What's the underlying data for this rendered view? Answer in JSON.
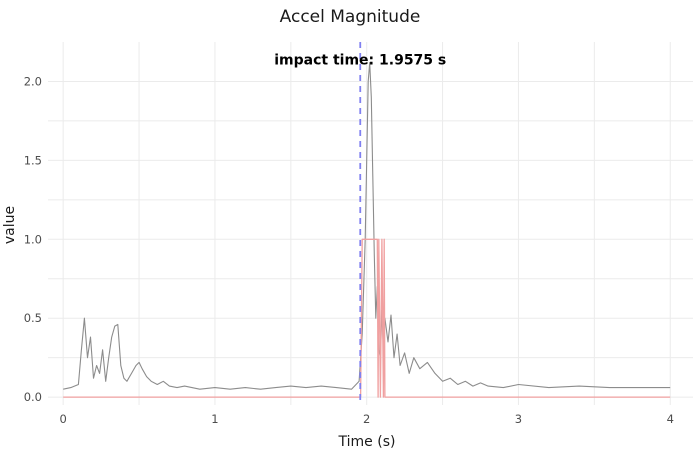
{
  "chart_data": {
    "type": "line",
    "title": "Accel Magnitude",
    "xlabel": "Time (s)",
    "ylabel": "value",
    "xlim": [
      -0.1,
      4.15
    ],
    "ylim": [
      -0.05,
      2.25
    ],
    "x_ticks": [
      0,
      1,
      2,
      3,
      4
    ],
    "x_tick_labels": [
      "0",
      "1",
      "2",
      "3",
      "4"
    ],
    "y_ticks": [
      0.0,
      0.5,
      1.0,
      1.5,
      2.0
    ],
    "y_tick_labels": [
      "0.0",
      "0.5",
      "1.0",
      "1.5",
      "2.0"
    ],
    "grid": true,
    "legend": "none",
    "annotation": {
      "text": "impact time: 1.9575 s",
      "x": 1.9575,
      "y": 2.14
    },
    "vline": {
      "x": 1.9575,
      "color": "#8080f0",
      "style": "dashed"
    },
    "series": [
      {
        "color": "#8c8c8c",
        "x": [
          0.0,
          0.05,
          0.1,
          0.12,
          0.14,
          0.16,
          0.18,
          0.2,
          0.22,
          0.24,
          0.26,
          0.28,
          0.3,
          0.32,
          0.34,
          0.36,
          0.38,
          0.4,
          0.42,
          0.45,
          0.48,
          0.5,
          0.52,
          0.55,
          0.58,
          0.62,
          0.66,
          0.7,
          0.75,
          0.8,
          0.9,
          1.0,
          1.1,
          1.2,
          1.3,
          1.4,
          1.5,
          1.6,
          1.7,
          1.8,
          1.9,
          1.95,
          1.97,
          1.99,
          2.0,
          2.01,
          2.02,
          2.03,
          2.04,
          2.05,
          2.06,
          2.07,
          2.08,
          2.09,
          2.1,
          2.11,
          2.12,
          2.14,
          2.16,
          2.18,
          2.2,
          2.22,
          2.25,
          2.28,
          2.31,
          2.35,
          2.4,
          2.45,
          2.5,
          2.55,
          2.6,
          2.65,
          2.7,
          2.75,
          2.8,
          2.9,
          3.0,
          3.2,
          3.4,
          3.6,
          3.8,
          4.0
        ],
        "y": [
          0.05,
          0.06,
          0.08,
          0.3,
          0.5,
          0.25,
          0.38,
          0.12,
          0.2,
          0.15,
          0.3,
          0.1,
          0.25,
          0.38,
          0.45,
          0.46,
          0.2,
          0.12,
          0.1,
          0.15,
          0.2,
          0.22,
          0.18,
          0.13,
          0.1,
          0.08,
          0.1,
          0.07,
          0.06,
          0.07,
          0.05,
          0.06,
          0.05,
          0.06,
          0.05,
          0.06,
          0.07,
          0.06,
          0.07,
          0.06,
          0.05,
          0.1,
          0.4,
          1.0,
          1.5,
          2.0,
          2.12,
          1.9,
          1.4,
          0.9,
          0.5,
          0.7,
          0.3,
          0.25,
          0.55,
          0.3,
          0.5,
          0.35,
          0.52,
          0.25,
          0.4,
          0.2,
          0.28,
          0.15,
          0.25,
          0.18,
          0.22,
          0.15,
          0.1,
          0.12,
          0.08,
          0.1,
          0.07,
          0.09,
          0.07,
          0.06,
          0.08,
          0.06,
          0.07,
          0.06,
          0.06,
          0.06
        ]
      },
      {
        "color": "#f0a0a0",
        "x": [
          0.0,
          1.96,
          1.97,
          2.07,
          2.075,
          2.08,
          2.09,
          2.1,
          2.11,
          2.115,
          2.12,
          4.0
        ],
        "y": [
          0,
          0,
          1,
          1,
          0,
          1,
          0,
          1,
          0,
          1,
          0,
          0
        ]
      }
    ]
  }
}
